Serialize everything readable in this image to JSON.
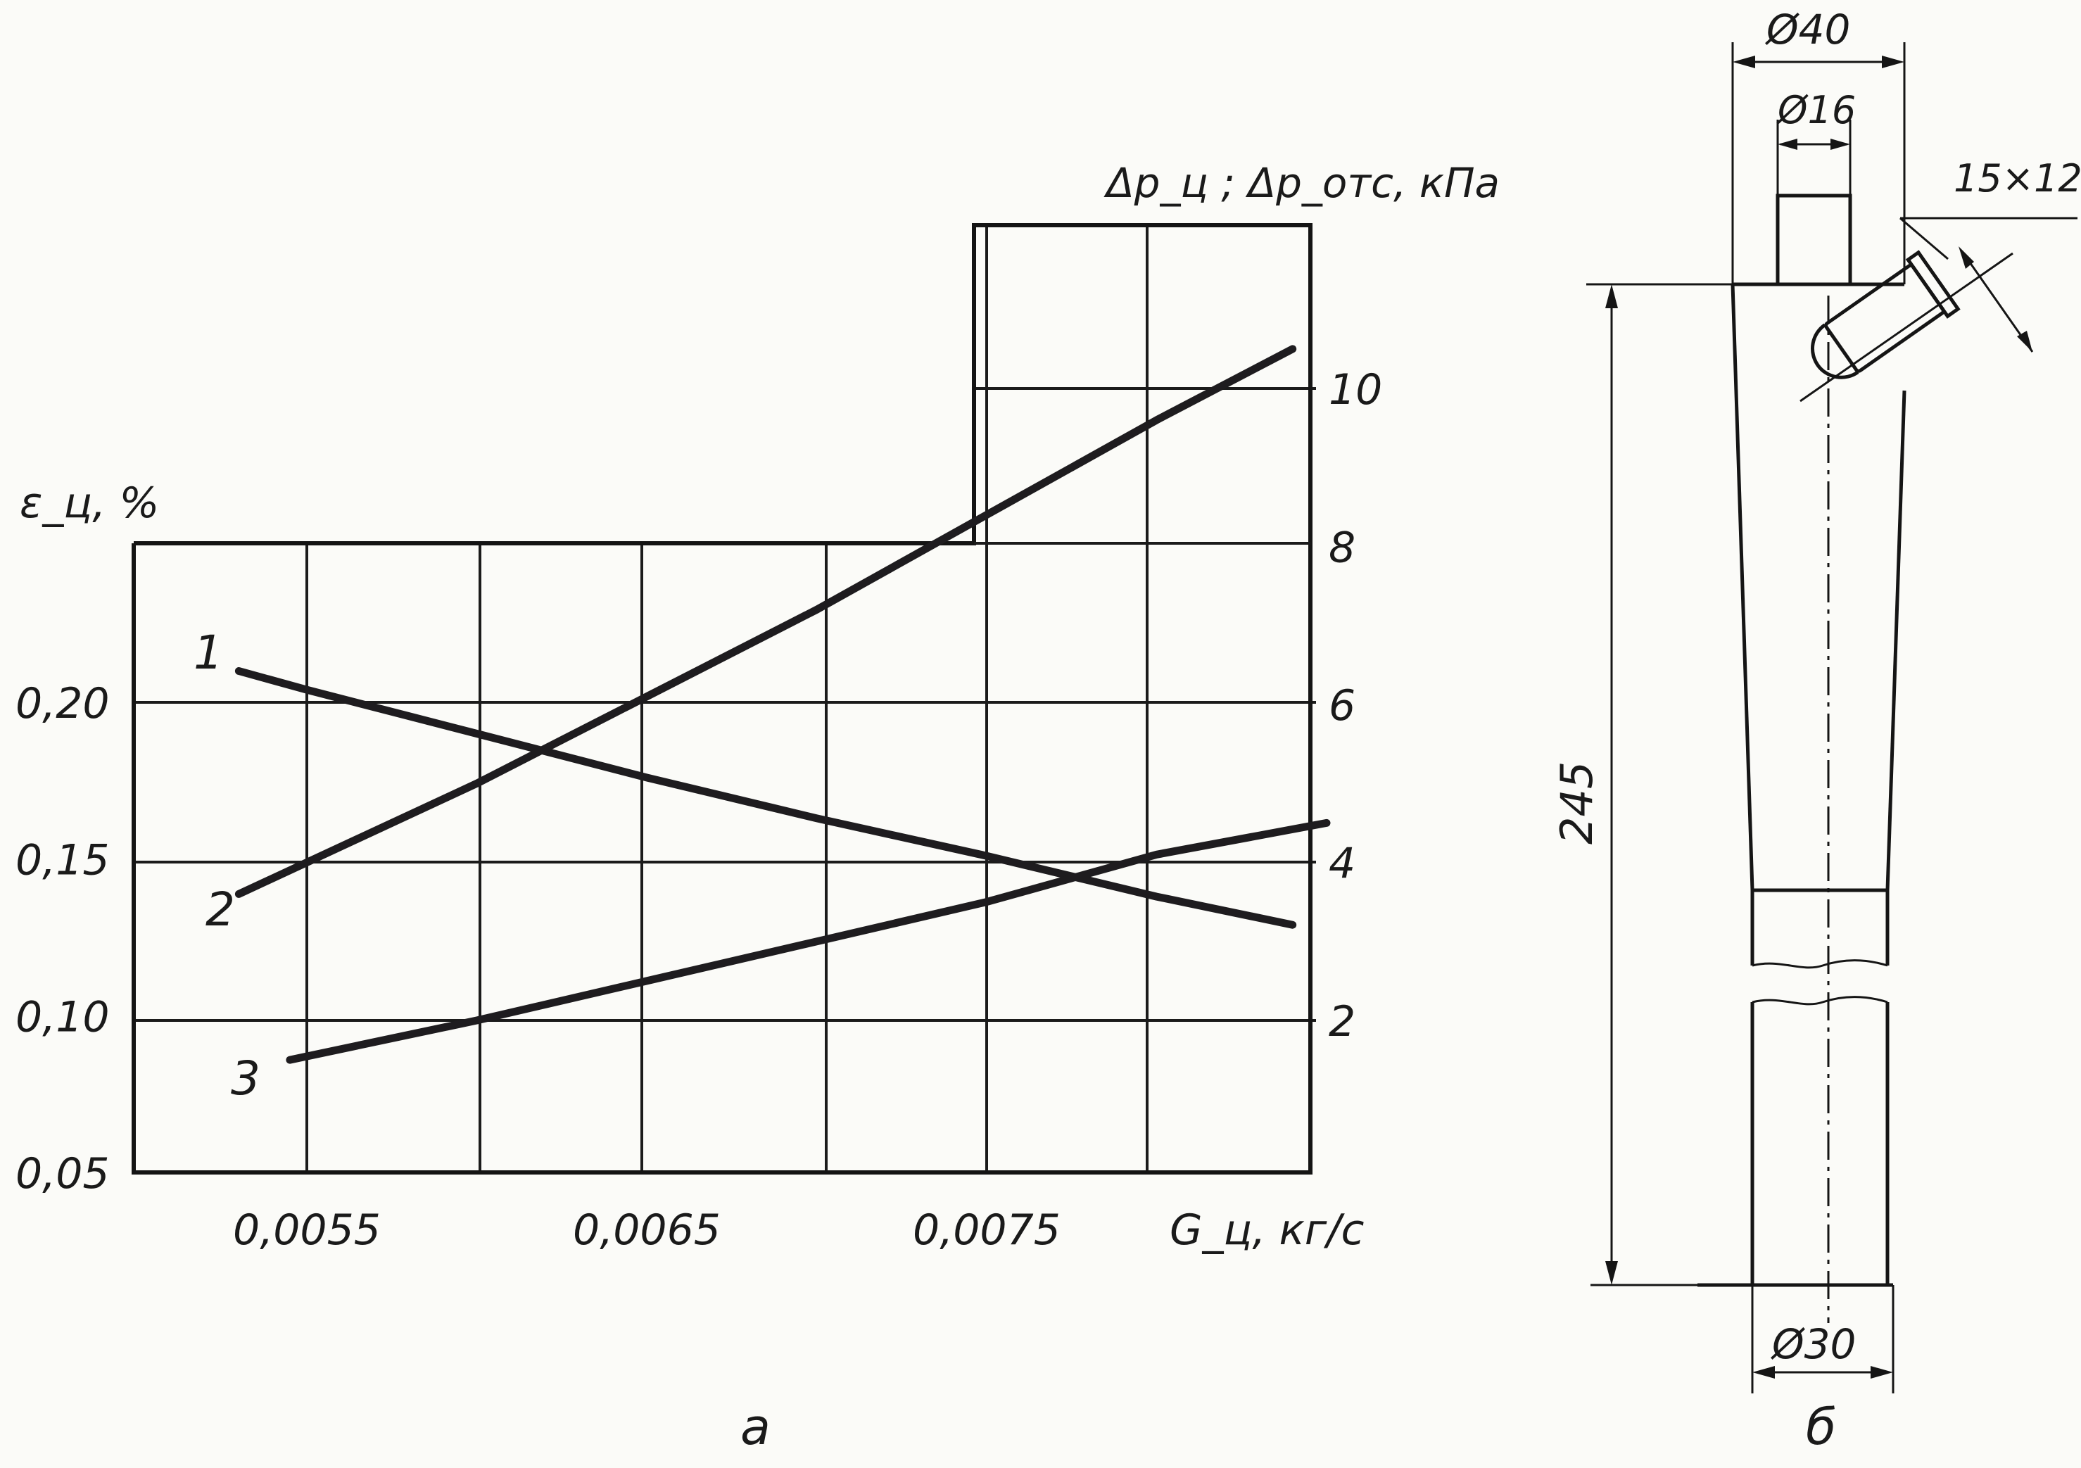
{
  "chart_data": {
    "type": "line",
    "x_label": "G_ц, кг/с",
    "x_ticks": [
      "0,0055",
      "0,0065",
      "0,0075"
    ],
    "x_tick_values": [
      0.0055,
      0.0065,
      0.0075
    ],
    "xlim": [
      0.005,
      0.0085
    ],
    "left_axis": {
      "label": "ε_ц, %",
      "ticks": [
        "0,05",
        "0,10",
        "0,15",
        "0,20"
      ],
      "tick_values": [
        0.05,
        0.1,
        0.15,
        0.2
      ],
      "range": [
        0.05,
        0.25
      ]
    },
    "right_axis": {
      "label": "Δp_ц ; Δp_отс, кПа",
      "ticks": [
        "2",
        "4",
        "6",
        "8",
        "10"
      ],
      "tick_values": [
        2,
        4,
        6,
        8,
        10
      ],
      "range": [
        0,
        12
      ]
    },
    "grid": true,
    "series": [
      {
        "name": "1",
        "axis": "left",
        "x": [
          0.0053,
          0.0055,
          0.006,
          0.0065,
          0.007,
          0.0075,
          0.008,
          0.0084
        ],
        "y": [
          0.21,
          0.204,
          0.19,
          0.176,
          0.163,
          0.151,
          0.138,
          0.129
        ]
      },
      {
        "name": "2",
        "axis": "right",
        "x": [
          0.0053,
          0.0055,
          0.006,
          0.0065,
          0.007,
          0.0075,
          0.008,
          0.0084
        ],
        "y": [
          3.6,
          4.0,
          5.0,
          6.1,
          7.2,
          8.4,
          9.6,
          10.5
        ]
      },
      {
        "name": "3",
        "axis": "right",
        "x": [
          0.00545,
          0.006,
          0.0065,
          0.007,
          0.0075,
          0.008,
          0.0085
        ],
        "y": [
          1.5,
          2.0,
          2.5,
          3.0,
          3.5,
          4.1,
          4.5
        ]
      }
    ]
  },
  "drawing": {
    "top_diameter": "Ø40",
    "inner_diameter": "Ø16",
    "inlet_size": "15×12",
    "height": "245",
    "bottom_diameter": "Ø30"
  },
  "captions": {
    "chart": "а",
    "drawing": "б"
  }
}
